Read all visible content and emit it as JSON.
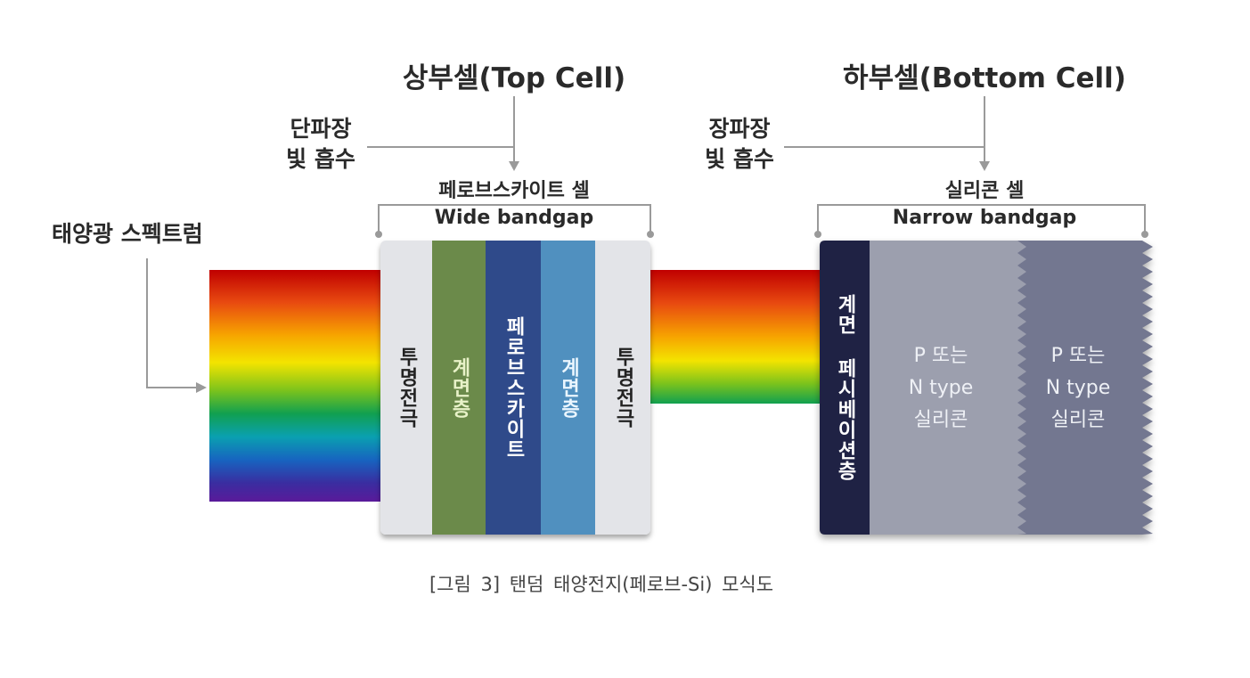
{
  "top_cell": {
    "title": "상부셀(Top Cell)",
    "absorb_line1": "단파장",
    "absorb_line2": "빛 흡수",
    "cell_name": "페로브스카이트 셀",
    "bandgap": "Wide bandgap",
    "layers": [
      "투명전극",
      "계면층",
      "페로브스카이트",
      "계면층",
      "투명전극"
    ]
  },
  "bottom_cell": {
    "title": "하부셀(Bottom Cell)",
    "absorb_line1": "장파장",
    "absorb_line2": "빛 흡수",
    "cell_name": "실리콘 셀",
    "bandgap": "Narrow bandgap",
    "layers": [
      {
        "lines": [
          "계면 페시베이션층"
        ]
      },
      {
        "lines": [
          "P 또는",
          "N type",
          "실리콘"
        ]
      },
      {
        "lines": [
          "P 또는",
          "N type",
          "실리콘"
        ]
      }
    ]
  },
  "spectrum_label": "태양광 스펙트럼",
  "caption": "[그림 3] 탠덤 태양전지(페로브-Si) 모식도",
  "colors": {
    "transparent_electrode": "#e3e4e8",
    "interface_green": "#6b8a4a",
    "perovskite": "#2f4a8a",
    "interface_blue": "#5090bf",
    "passivation": "#1f2244",
    "silicon_light": "#9c9fae",
    "silicon_dark": "#737790"
  }
}
